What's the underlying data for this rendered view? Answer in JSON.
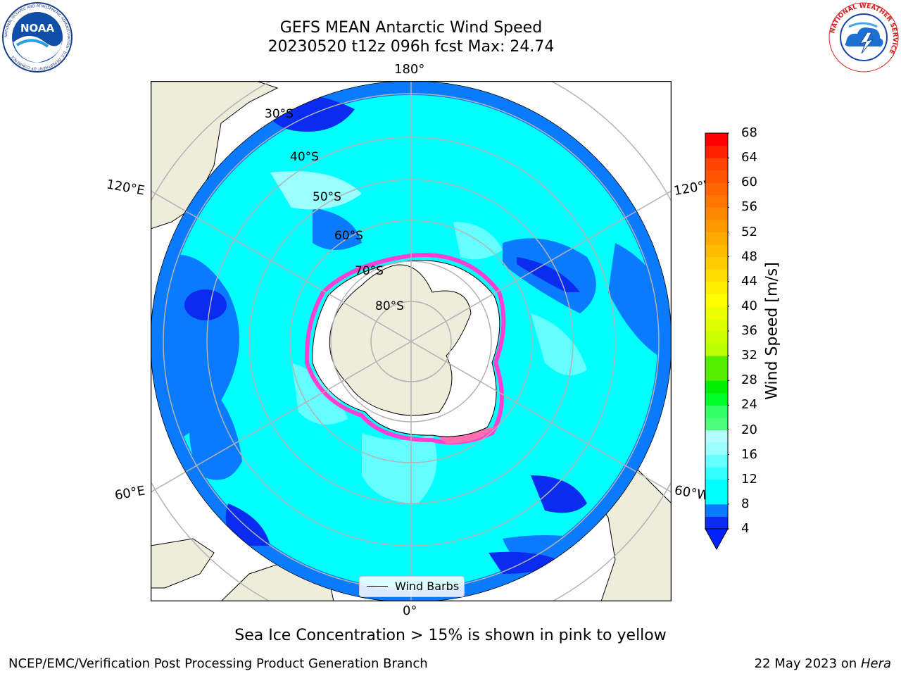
{
  "header": {
    "title_line1": "GEFS MEAN Antarctic Wind Speed",
    "title_line2": "20230520 t12z 096h fcst   Max: 24.74"
  },
  "logos": {
    "left": "NOAA",
    "left_ring_text": "NATIONAL OCEANIC AND ATMOSPHERIC ADMINISTRATION · U.S. DEPARTMENT OF COMMERCE",
    "right_ring_text": "NATIONAL WEATHER SERVICE"
  },
  "map": {
    "longitude_labels": {
      "top": "180°",
      "bottom": "0°",
      "upper_left": "120°E",
      "upper_right": "120°W",
      "lower_left": "60°E",
      "lower_right": "60°W"
    },
    "latitude_labels": [
      "30°S",
      "40°S",
      "50°S",
      "60°S",
      "70°S",
      "80°S"
    ],
    "legend_label": "Wind Barbs",
    "colors": {
      "land": "#eeecdb",
      "ice_edge": "#ff3fd1",
      "background_wind": "#00ffff"
    }
  },
  "colorbar": {
    "label": "Wind Speed [m/s]",
    "ticks": [
      "4",
      "8",
      "12",
      "16",
      "20",
      "24",
      "28",
      "32",
      "36",
      "40",
      "44",
      "48",
      "52",
      "56",
      "60",
      "64",
      "68"
    ],
    "bins": [
      {
        "min": 4,
        "max": 6,
        "color": "#0a2cf0"
      },
      {
        "min": 6,
        "max": 8,
        "color": "#0a7bff"
      },
      {
        "min": 8,
        "max": 10,
        "color": "#00ffff"
      },
      {
        "min": 10,
        "max": 12,
        "color": "#00ffff"
      },
      {
        "min": 12,
        "max": 14,
        "color": "#33ffff"
      },
      {
        "min": 14,
        "max": 16,
        "color": "#66ffff"
      },
      {
        "min": 16,
        "max": 18,
        "color": "#99ffff"
      },
      {
        "min": 18,
        "max": 20,
        "color": "#b3ffff"
      },
      {
        "min": 20,
        "max": 22,
        "color": "#4dff7a"
      },
      {
        "min": 22,
        "max": 24,
        "color": "#33ff66"
      },
      {
        "min": 24,
        "max": 26,
        "color": "#00ff2a"
      },
      {
        "min": 26,
        "max": 28,
        "color": "#00ee00"
      },
      {
        "min": 28,
        "max": 30,
        "color": "#55ee00"
      },
      {
        "min": 30,
        "max": 32,
        "color": "#55ee00"
      },
      {
        "min": 32,
        "max": 34,
        "color": "#bbff00"
      },
      {
        "min": 34,
        "max": 36,
        "color": "#ccff00"
      },
      {
        "min": 36,
        "max": 38,
        "color": "#ddff00"
      },
      {
        "min": 38,
        "max": 40,
        "color": "#eeff00"
      },
      {
        "min": 40,
        "max": 42,
        "color": "#ffff00"
      },
      {
        "min": 42,
        "max": 44,
        "color": "#fff000"
      },
      {
        "min": 44,
        "max": 46,
        "color": "#ffdd00"
      },
      {
        "min": 46,
        "max": 48,
        "color": "#ffcc00"
      },
      {
        "min": 48,
        "max": 50,
        "color": "#ffbb00"
      },
      {
        "min": 50,
        "max": 52,
        "color": "#ffaa00"
      },
      {
        "min": 52,
        "max": 54,
        "color": "#ff9900"
      },
      {
        "min": 54,
        "max": 56,
        "color": "#ff8800"
      },
      {
        "min": 56,
        "max": 58,
        "color": "#ff7700"
      },
      {
        "min": 58,
        "max": 60,
        "color": "#ff6600"
      },
      {
        "min": 60,
        "max": 62,
        "color": "#ff5500"
      },
      {
        "min": 62,
        "max": 64,
        "color": "#ff4400"
      },
      {
        "min": 64,
        "max": 66,
        "color": "#ff2200"
      },
      {
        "min": 66,
        "max": 68,
        "color": "#ff0000"
      }
    ],
    "extend_color": "#0022ff"
  },
  "footer": {
    "note": "Sea Ice Concentration > 15% is shown in pink to yellow",
    "left": "NCEP/EMC/Verification Post Processing Product Generation Branch",
    "right_prefix": "22 May 2023 on ",
    "right_host": "Hera"
  }
}
